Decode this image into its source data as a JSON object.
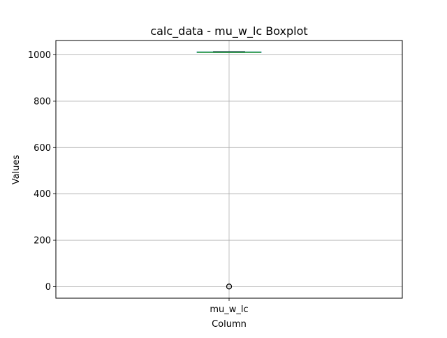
{
  "chart_data": {
    "type": "box",
    "title": "calc_data - mu_w_lc Boxplot",
    "xlabel": "Column",
    "ylabel": "Values",
    "categories": [
      "mu_w_lc"
    ],
    "ylim": [
      -50,
      1062
    ],
    "yticks": [
      0,
      200,
      400,
      600,
      800,
      1000
    ],
    "ytick_labels": [
      "0",
      "200",
      "400",
      "600",
      "800",
      "1000"
    ],
    "grid": true,
    "boxes": [
      {
        "name": "mu_w_lc",
        "whisker_low": 1010,
        "q1": 1011,
        "median": 1011,
        "q3": 1013,
        "whisker_high": 1014,
        "outliers": [
          0,
          0.5,
          1
        ]
      }
    ],
    "colors": {
      "box": "#1f77b4",
      "median": "#2ca02c",
      "grid": "#b0b0b0",
      "outlier": "#000000"
    }
  }
}
